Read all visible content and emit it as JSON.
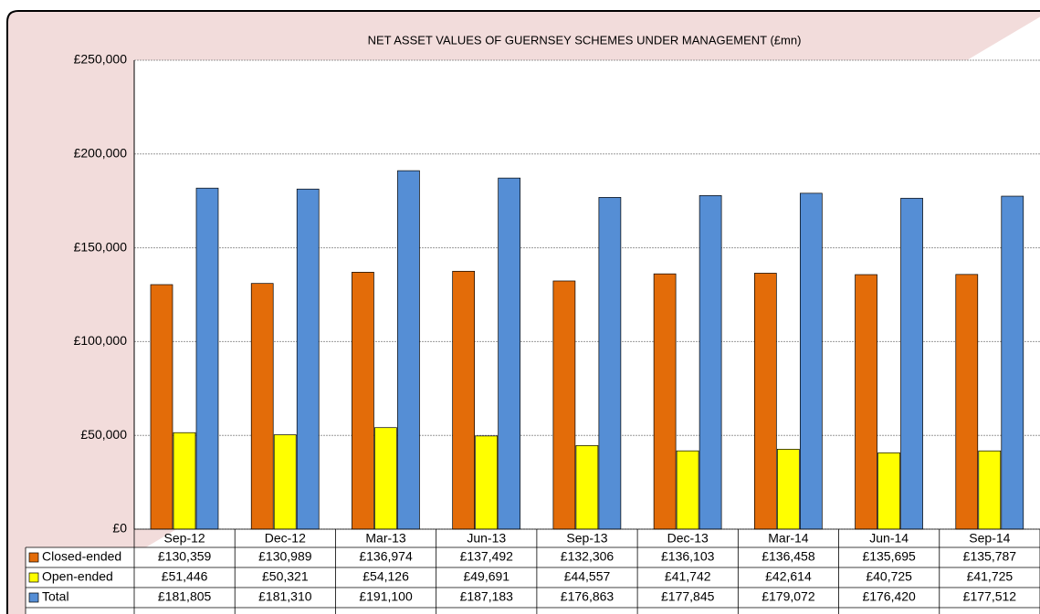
{
  "chart_data": {
    "type": "bar",
    "title": "NET ASSET VALUES OF GUERNSEY SCHEMES UNDER MANAGEMENT (£mn)",
    "categories": [
      "Sep-12",
      "Dec-12",
      "Mar-13",
      "Jun-13",
      "Sep-13",
      "Dec-13",
      "Mar-14",
      "Jun-14",
      "Sep-14"
    ],
    "series": [
      {
        "name": "Closed-ended",
        "color": "#e36c09",
        "values": [
          130359,
          130989,
          136974,
          137492,
          132306,
          136103,
          136458,
          135695,
          135787
        ],
        "value_labels": [
          "£130,359",
          "£130,989",
          "£136,974",
          "£137,492",
          "£132,306",
          "£136,103",
          "£136,458",
          "£135,695",
          "£135,787"
        ]
      },
      {
        "name": "Open-ended",
        "color": "#ffff00",
        "values": [
          51446,
          50321,
          54126,
          49691,
          44557,
          41742,
          42614,
          40725,
          41725
        ],
        "value_labels": [
          "£51,446",
          "£50,321",
          "£54,126",
          "£49,691",
          "£44,557",
          "£41,742",
          "£42,614",
          "£40,725",
          "£41,725"
        ]
      },
      {
        "name": "Total",
        "color": "#558ed5",
        "values": [
          181805,
          181310,
          191100,
          187183,
          176863,
          177845,
          179072,
          176420,
          177512
        ],
        "value_labels": [
          "£181,805",
          "£181,310",
          "£191,100",
          "£187,183",
          "£176,863",
          "£177,845",
          "£179,072",
          "£176,420",
          "£177,512"
        ]
      }
    ],
    "ylim": [
      0,
      250000
    ],
    "yticks": [
      {
        "value": 0,
        "label": "£0"
      },
      {
        "value": 50000,
        "label": "£50,000"
      },
      {
        "value": 100000,
        "label": "£100,000"
      },
      {
        "value": 150000,
        "label": "£150,000"
      },
      {
        "value": 200000,
        "label": "£200,000"
      },
      {
        "value": 250000,
        "label": "£250,000"
      }
    ],
    "grid": true
  }
}
